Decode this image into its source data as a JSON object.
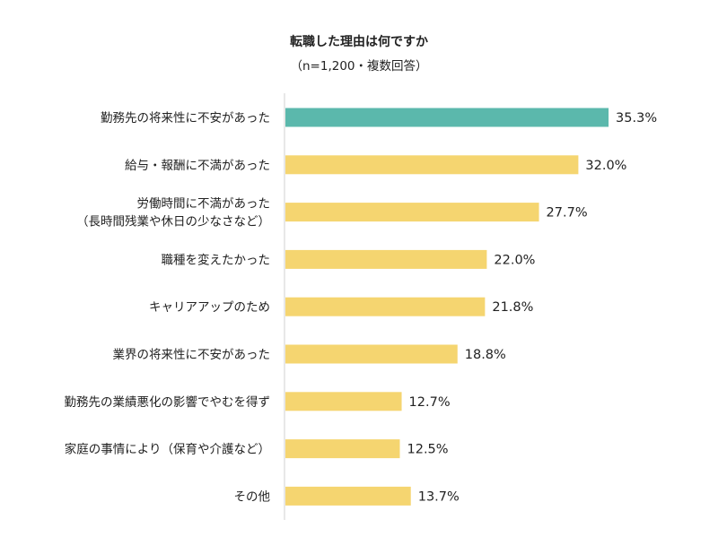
{
  "chart_data": {
    "type": "bar",
    "orientation": "horizontal",
    "title": "転職した理由は何ですか",
    "subtitle": "（n=1,200・複数回答）",
    "categories": [
      [
        "勤務先の将来性に不安があった"
      ],
      [
        "給与・報酬に不満があった"
      ],
      [
        "労働時間に不満があった",
        "（長時間残業や休日の少なさなど）"
      ],
      [
        "職種を変えたかった"
      ],
      [
        "キャリアアップのため"
      ],
      [
        "業界の将来性に不安があった"
      ],
      [
        "勤務先の業績悪化の影響でやむを得ず"
      ],
      [
        "家庭の事情により（保育や介護など）"
      ],
      [
        "その他"
      ]
    ],
    "values": [
      35.3,
      32.0,
      27.7,
      22.0,
      21.8,
      18.8,
      12.7,
      12.5,
      13.7
    ],
    "value_labels": [
      "35.3%",
      "32.0%",
      "27.7%",
      "22.0%",
      "21.8%",
      "18.8%",
      "12.7%",
      "12.5%",
      "13.7%"
    ],
    "highlight_index": 0,
    "colors": {
      "highlight": "#5bb8ac",
      "default": "#f5d570",
      "axis": "#d0d0d0"
    },
    "xlim": [
      0,
      40
    ],
    "grid": false,
    "legend": "none"
  }
}
